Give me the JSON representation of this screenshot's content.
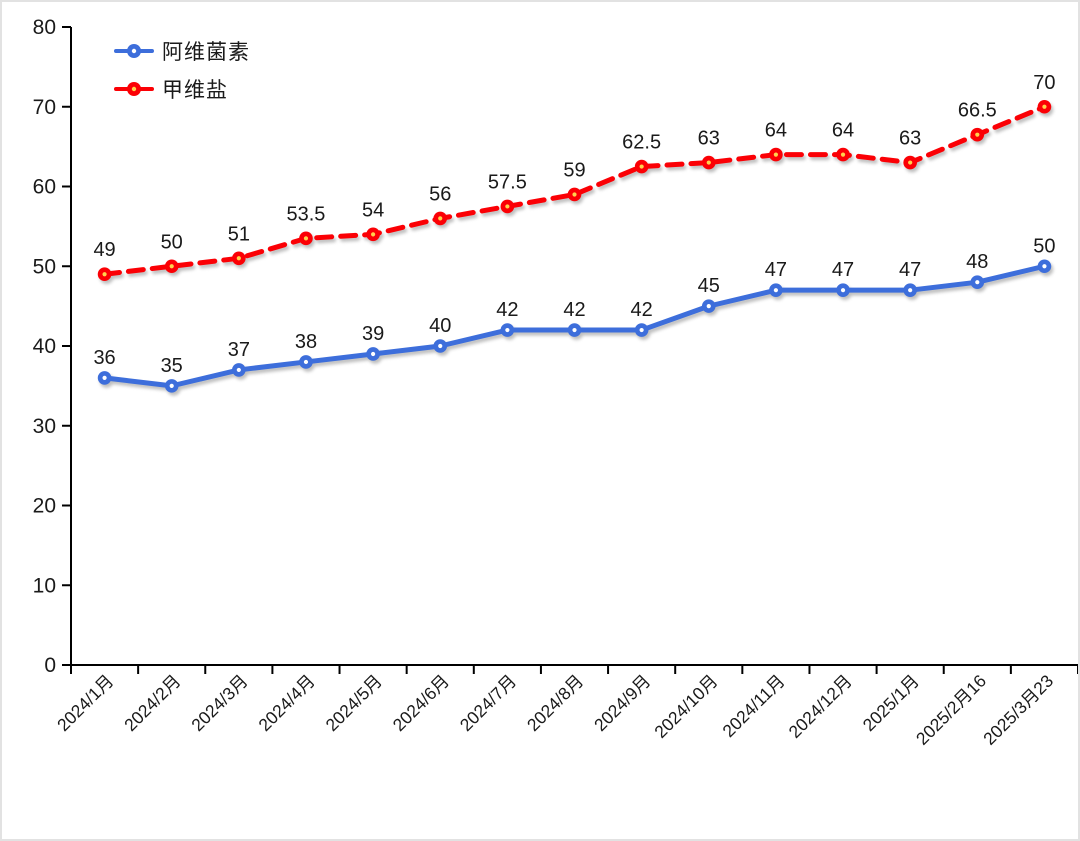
{
  "chart_data": {
    "type": "line",
    "categories": [
      "2024/1月",
      "2024/2月",
      "2024/3月",
      "2024/4月",
      "2024/5月",
      "2024/6月",
      "2024/7月",
      "2024/8月",
      "2024/9月",
      "2024/10月",
      "2024/11月",
      "2024/12月",
      "2025/1月",
      "2025/2月16",
      "2025/3月23"
    ],
    "series": [
      {
        "name": "阿维菌素",
        "values": [
          36,
          35,
          37,
          38,
          39,
          40,
          42,
          42,
          42,
          45,
          47,
          47,
          47,
          48,
          50
        ],
        "color": "#3D6EDB",
        "line_style": "solid",
        "marker": "circle",
        "marker_dot_color": "#FFFFFF"
      },
      {
        "name": "甲维盐",
        "values": [
          49,
          50,
          51,
          53.5,
          54,
          56,
          57.5,
          59,
          62.5,
          63,
          64,
          64,
          63,
          66.5,
          70
        ],
        "color": "#FB0005",
        "line_style": "dashed",
        "marker": "circle",
        "marker_dot_color": "#FFD24D"
      }
    ],
    "title": "",
    "xlabel": "",
    "ylabel": "",
    "ylim": [
      0,
      80
    ],
    "yticks": [
      0,
      10,
      20,
      30,
      40,
      50,
      60,
      70,
      80
    ],
    "grid": false,
    "data_labels": true,
    "legend_position": "top-left",
    "axis_color": "#000000",
    "label_color": "#1a1a1a"
  }
}
